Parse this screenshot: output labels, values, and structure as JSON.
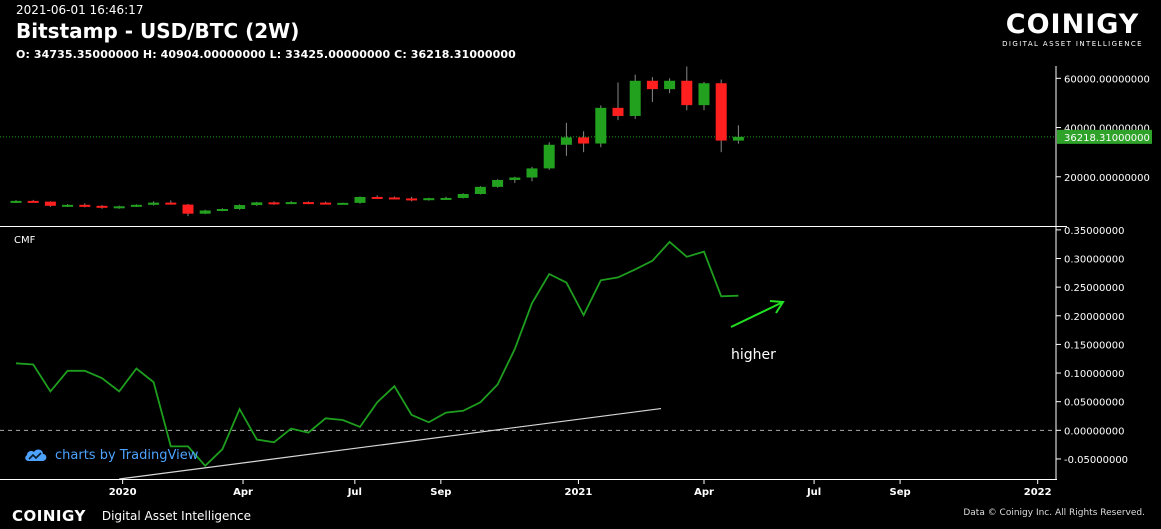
{
  "header": {
    "timestamp": "2021-06-01 16:46:17",
    "title": "Bitstamp - USD/BTC (2W)",
    "ohlc": "O: 34735.35000000 H: 40904.00000000 L: 33425.00000000 C: 36218.31000000"
  },
  "brand": {
    "name": "COINIGY",
    "tagline": "DIGITAL ASSET INTELLIGENCE"
  },
  "footer": {
    "logo": "COINIGY",
    "tagline": "Digital Asset Intelligence",
    "copyright": "Data © Coinigy Inc.  All Rights Reserved."
  },
  "watermark": {
    "text": "charts by TradingView"
  },
  "colors": {
    "up": "#22a11f",
    "down": "#ff1f1f",
    "cmf_line": "#1e9e1e",
    "annotation": "#22e022",
    "trendline": "#d8d8d8",
    "price_badge": "#2fa22a"
  },
  "chart_data": [
    {
      "type": "candlestick",
      "title": "Bitstamp - USD/BTC (2W)",
      "ylim": [
        0,
        65000
      ],
      "y_ticks": [
        20000,
        40000,
        60000
      ],
      "y_tick_labels": [
        "20000.00000000",
        "40000.00000000",
        "60000.00000000"
      ],
      "last_price": 36218.31,
      "last_price_label": "36218.31000000",
      "candles": [
        {
          "o": 9700,
          "h": 10500,
          "l": 9300,
          "c": 10200
        },
        {
          "o": 10200,
          "h": 10600,
          "l": 9800,
          "c": 9900
        },
        {
          "o": 9900,
          "h": 10000,
          "l": 7800,
          "c": 8200
        },
        {
          "o": 8200,
          "h": 8900,
          "l": 7700,
          "c": 8600
        },
        {
          "o": 8600,
          "h": 9200,
          "l": 7600,
          "c": 8200
        },
        {
          "o": 8200,
          "h": 8500,
          "l": 7000,
          "c": 7500
        },
        {
          "o": 7500,
          "h": 8300,
          "l": 7000,
          "c": 8000
        },
        {
          "o": 8000,
          "h": 8800,
          "l": 7700,
          "c": 8600
        },
        {
          "o": 8600,
          "h": 10000,
          "l": 8300,
          "c": 9500
        },
        {
          "o": 9500,
          "h": 10400,
          "l": 8700,
          "c": 8700
        },
        {
          "o": 8700,
          "h": 9000,
          "l": 4000,
          "c": 5000
        },
        {
          "o": 5000,
          "h": 6600,
          "l": 4800,
          "c": 6300
        },
        {
          "o": 6300,
          "h": 7200,
          "l": 6000,
          "c": 6900
        },
        {
          "o": 6900,
          "h": 8800,
          "l": 6600,
          "c": 8500
        },
        {
          "o": 8500,
          "h": 9800,
          "l": 8200,
          "c": 9600
        },
        {
          "o": 9600,
          "h": 10000,
          "l": 8600,
          "c": 9100
        },
        {
          "o": 9100,
          "h": 10100,
          "l": 8900,
          "c": 9700
        },
        {
          "o": 9700,
          "h": 10000,
          "l": 9100,
          "c": 9500
        },
        {
          "o": 9500,
          "h": 9900,
          "l": 8900,
          "c": 9200
        },
        {
          "o": 9200,
          "h": 9500,
          "l": 8900,
          "c": 9400
        },
        {
          "o": 9400,
          "h": 12000,
          "l": 9100,
          "c": 11800
        },
        {
          "o": 11800,
          "h": 12400,
          "l": 11100,
          "c": 11600
        },
        {
          "o": 11600,
          "h": 12000,
          "l": 11000,
          "c": 11200
        },
        {
          "o": 11200,
          "h": 11800,
          "l": 10000,
          "c": 10700
        },
        {
          "o": 10700,
          "h": 11500,
          "l": 10300,
          "c": 11300
        },
        {
          "o": 11300,
          "h": 11900,
          "l": 10800,
          "c": 11400
        },
        {
          "o": 11400,
          "h": 13300,
          "l": 11200,
          "c": 13000
        },
        {
          "o": 13000,
          "h": 16200,
          "l": 12800,
          "c": 15900
        },
        {
          "o": 15900,
          "h": 19000,
          "l": 15600,
          "c": 18700
        },
        {
          "o": 18700,
          "h": 20000,
          "l": 17500,
          "c": 19700
        },
        {
          "o": 19700,
          "h": 24000,
          "l": 18200,
          "c": 23400
        },
        {
          "o": 23400,
          "h": 34000,
          "l": 22800,
          "c": 33000
        },
        {
          "o": 33000,
          "h": 41900,
          "l": 28500,
          "c": 36000
        },
        {
          "o": 36000,
          "h": 38500,
          "l": 30000,
          "c": 33500
        },
        {
          "o": 33500,
          "h": 49000,
          "l": 32000,
          "c": 48000
        },
        {
          "o": 48000,
          "h": 58300,
          "l": 43000,
          "c": 44700
        },
        {
          "o": 44700,
          "h": 61500,
          "l": 43500,
          "c": 59000
        },
        {
          "o": 59000,
          "h": 60500,
          "l": 50400,
          "c": 55600
        },
        {
          "o": 55600,
          "h": 60000,
          "l": 54000,
          "c": 59000
        },
        {
          "o": 59000,
          "h": 64800,
          "l": 47000,
          "c": 49100
        },
        {
          "o": 49100,
          "h": 58500,
          "l": 47000,
          "c": 58000
        },
        {
          "o": 58000,
          "h": 59500,
          "l": 30000,
          "c": 34700
        },
        {
          "o": 34700,
          "h": 40904,
          "l": 33425,
          "c": 36218.31
        }
      ]
    },
    {
      "type": "line",
      "title": "CMF",
      "ylim": [
        -0.085,
        0.355
      ],
      "y_ticks": [
        -0.05,
        0,
        0.05,
        0.1,
        0.15,
        0.2,
        0.25,
        0.3,
        0.35
      ],
      "y_tick_labels": [
        "-0.05000000",
        "0.00000000",
        "0.05000000",
        "0.10000000",
        "0.15000000",
        "0.20000000",
        "0.25000000",
        "0.30000000",
        "0.35000000"
      ],
      "zero_line": 0,
      "x_ticks": [
        {
          "label": "2020",
          "index": 6.2
        },
        {
          "label": "Apr",
          "index": 13.2
        },
        {
          "label": "Jul",
          "index": 19.7
        },
        {
          "label": "Sep",
          "index": 24.7
        },
        {
          "label": "2021",
          "index": 32.7
        },
        {
          "label": "Apr",
          "index": 40.0
        },
        {
          "label": "Jul",
          "index": 46.4
        },
        {
          "label": "Sep",
          "index": 51.4
        },
        {
          "label": "2022",
          "index": 59.4
        }
      ],
      "values": [
        0.117,
        0.115,
        0.068,
        0.104,
        0.104,
        0.091,
        0.068,
        0.108,
        0.084,
        -0.028,
        -0.028,
        -0.062,
        -0.033,
        0.037,
        -0.016,
        -0.021,
        0.003,
        -0.004,
        0.021,
        0.018,
        0.006,
        0.049,
        0.077,
        0.027,
        0.014,
        0.031,
        0.034,
        0.049,
        0.08,
        0.142,
        0.222,
        0.273,
        0.258,
        0.201,
        0.262,
        0.267,
        0.281,
        0.296,
        0.329,
        0.303,
        0.312,
        0.234,
        0.235
      ],
      "annotation": "higher",
      "trendline": {
        "from": [
          6.0,
          -0.085
        ],
        "to": [
          37.5,
          0.038
        ]
      }
    }
  ]
}
